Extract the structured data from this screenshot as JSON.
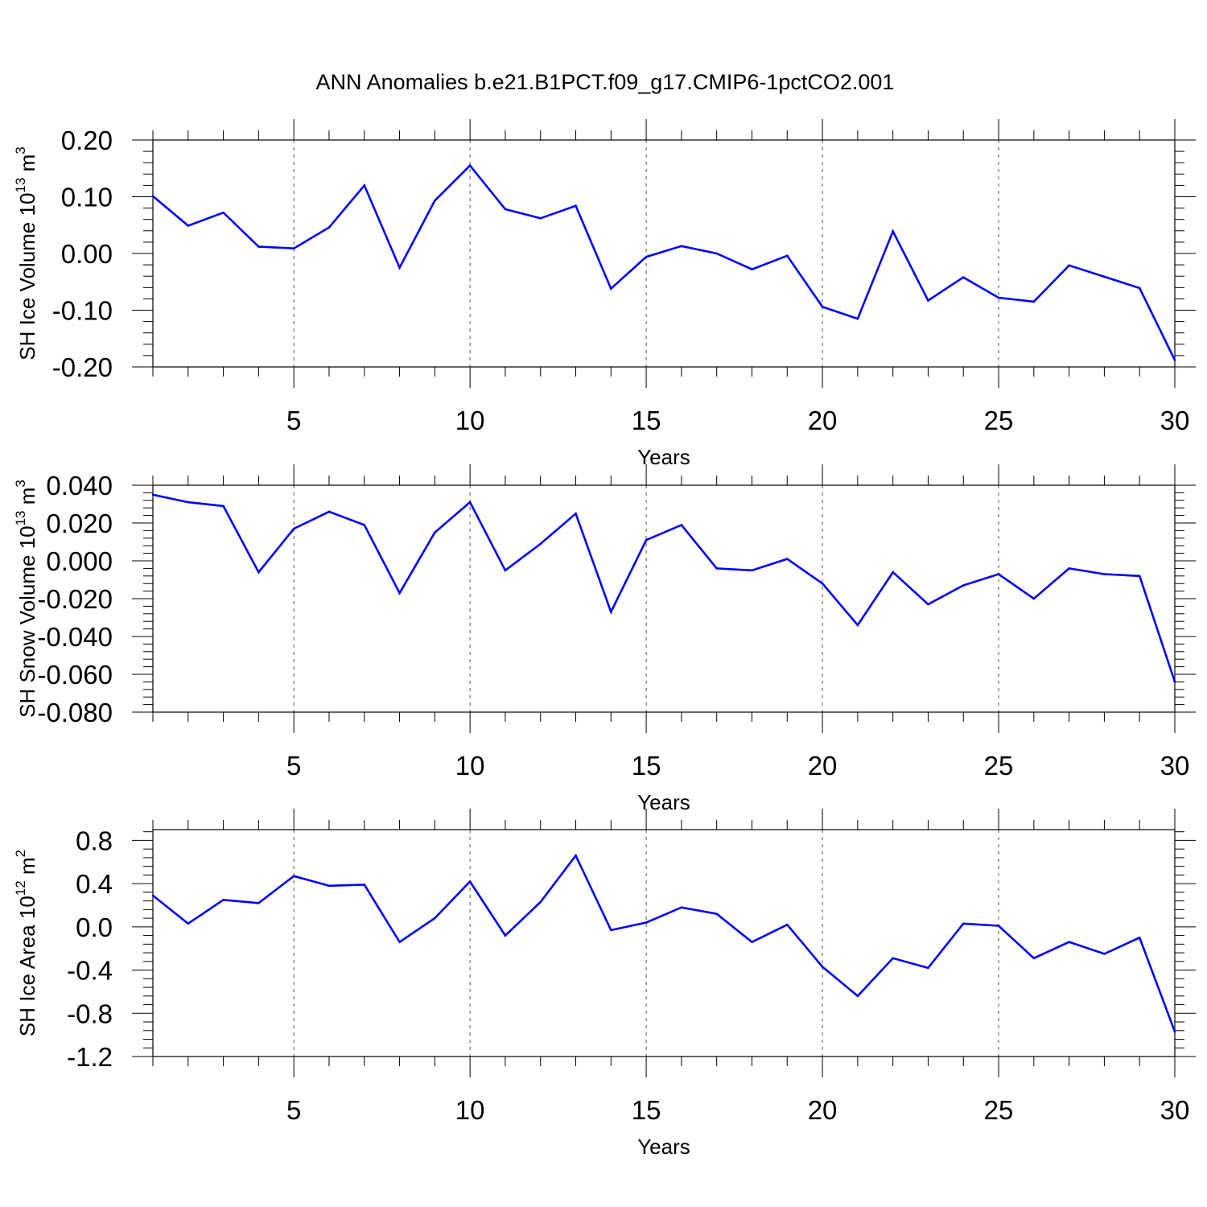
{
  "title": "ANN Anomalies b.e21.B1PCT.f09_g17.CMIP6-1pctCO2.001",
  "colors": {
    "line": "#0000ff",
    "axis": "#000000",
    "grid": "#555555"
  },
  "chart_data": [
    {
      "type": "line",
      "ylabel_main": "SH Ice Volume 10",
      "ylabel_exp": "13",
      "ylabel_unit": " m",
      "ylabel_unit_exp": "3",
      "xlabel": "Years",
      "xlim": [
        1,
        30
      ],
      "ylim": [
        -0.2,
        0.2
      ],
      "yticks": [
        -0.2,
        -0.1,
        0.0,
        0.1,
        0.2
      ],
      "ytick_labels": [
        "-0.20",
        "-0.10",
        "0.00",
        "0.10",
        "0.20"
      ],
      "xticks": [
        5,
        10,
        15,
        20,
        25,
        30
      ],
      "xtick_labels": [
        "5",
        "10",
        "15",
        "20",
        "25",
        "30"
      ],
      "vlines": [
        5,
        10,
        15,
        20,
        25
      ],
      "series": [
        {
          "name": "SH Ice Volume",
          "x": [
            1,
            2,
            3,
            4,
            5,
            6,
            7,
            8,
            9,
            10,
            11,
            12,
            13,
            14,
            15,
            16,
            17,
            18,
            19,
            20,
            21,
            22,
            23,
            24,
            25,
            26,
            27,
            28,
            29,
            30
          ],
          "values": [
            0.101,
            0.049,
            0.072,
            0.012,
            0.009,
            0.046,
            0.12,
            -0.025,
            0.093,
            0.155,
            0.078,
            0.062,
            0.084,
            -0.062,
            -0.006,
            0.013,
            0.0,
            -0.028,
            -0.004,
            -0.094,
            -0.115,
            0.039,
            -0.083,
            -0.042,
            -0.078,
            -0.085,
            -0.021,
            -0.041,
            -0.061,
            -0.188
          ]
        }
      ]
    },
    {
      "type": "line",
      "ylabel_main": "SH Snow Volume 10",
      "ylabel_exp": "13",
      "ylabel_unit": " m",
      "ylabel_unit_exp": "3",
      "xlabel": "Years",
      "xlim": [
        1,
        30
      ],
      "ylim": [
        -0.08,
        0.04
      ],
      "yticks": [
        -0.08,
        -0.06,
        -0.04,
        -0.02,
        0.0,
        0.02,
        0.04
      ],
      "ytick_labels": [
        "-0.080",
        "-0.060",
        "-0.040",
        "-0.020",
        "0.000",
        "0.020",
        "0.040"
      ],
      "xticks": [
        5,
        10,
        15,
        20,
        25,
        30
      ],
      "xtick_labels": [
        "5",
        "10",
        "15",
        "20",
        "25",
        "30"
      ],
      "vlines": [
        5,
        10,
        15,
        20,
        25
      ],
      "series": [
        {
          "name": "SH Snow Volume",
          "x": [
            1,
            2,
            3,
            4,
            5,
            6,
            7,
            8,
            9,
            10,
            11,
            12,
            13,
            14,
            15,
            16,
            17,
            18,
            19,
            20,
            21,
            22,
            23,
            24,
            25,
            26,
            27,
            28,
            29,
            30
          ],
          "values": [
            0.035,
            0.031,
            0.029,
            -0.006,
            0.017,
            0.026,
            0.019,
            -0.017,
            0.015,
            0.031,
            -0.005,
            0.009,
            0.025,
            -0.027,
            0.011,
            0.019,
            -0.004,
            -0.005,
            0.001,
            -0.012,
            -0.034,
            -0.006,
            -0.023,
            -0.013,
            -0.007,
            -0.02,
            -0.004,
            -0.007,
            -0.008,
            -0.064
          ]
        }
      ]
    },
    {
      "type": "line",
      "ylabel_main": "SH Ice Area 10",
      "ylabel_exp": "12",
      "ylabel_unit": " m",
      "ylabel_unit_exp": "2",
      "xlabel": "Years",
      "xlim": [
        1,
        30
      ],
      "ylim": [
        -1.2,
        0.9
      ],
      "yticks": [
        -1.2,
        -0.8,
        -0.4,
        0.0,
        0.4,
        0.8
      ],
      "ytick_labels": [
        "-1.2",
        "-0.8",
        "-0.4",
        "0.0",
        "0.4",
        "0.8"
      ],
      "xticks": [
        5,
        10,
        15,
        20,
        25,
        30
      ],
      "xtick_labels": [
        "5",
        "10",
        "15",
        "20",
        "25",
        "30"
      ],
      "vlines": [
        5,
        10,
        15,
        20,
        25
      ],
      "series": [
        {
          "name": "SH Ice Area",
          "x": [
            1,
            2,
            3,
            4,
            5,
            6,
            7,
            8,
            9,
            10,
            11,
            12,
            13,
            14,
            15,
            16,
            17,
            18,
            19,
            20,
            21,
            22,
            23,
            24,
            25,
            26,
            27,
            28,
            29,
            30
          ],
          "values": [
            0.29,
            0.03,
            0.25,
            0.22,
            0.47,
            0.38,
            0.39,
            -0.14,
            0.08,
            0.42,
            -0.08,
            0.23,
            0.66,
            -0.03,
            0.04,
            0.18,
            0.12,
            -0.14,
            0.02,
            -0.37,
            -0.64,
            -0.29,
            -0.38,
            0.03,
            0.01,
            -0.29,
            -0.14,
            -0.25,
            -0.1,
            -0.97
          ]
        }
      ]
    }
  ]
}
